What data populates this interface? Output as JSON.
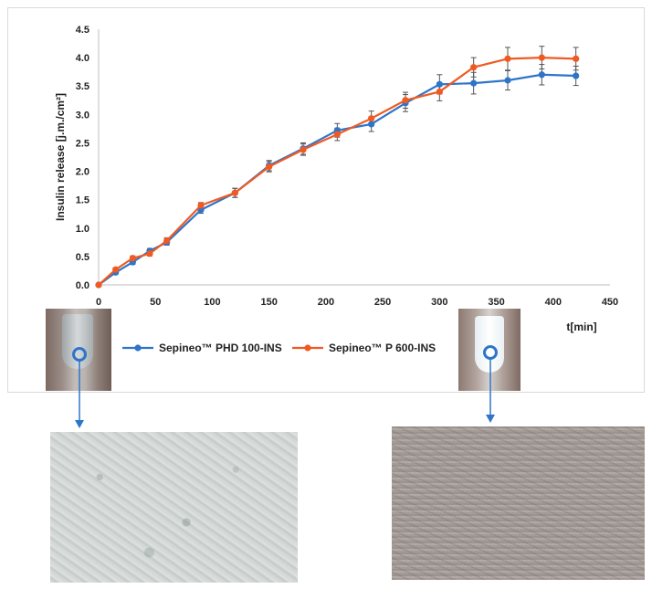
{
  "chart_data": {
    "type": "line",
    "title": "",
    "xlabel": "t[min]",
    "ylabel": "Insulin  release [j.m./cm²]",
    "xlim": [
      0,
      450
    ],
    "ylim": [
      0,
      4.5
    ],
    "xticks": [
      "0",
      "50",
      "100",
      "150",
      "200",
      "250",
      "300",
      "350",
      "400",
      "450"
    ],
    "yticks": [
      "0.0",
      "0.5",
      "1.0",
      "1.5",
      "2.0",
      "2.5",
      "3.0",
      "3.5",
      "4.0",
      "4.5"
    ],
    "grid": false,
    "legend_position": "bottom",
    "x": [
      0,
      15,
      30,
      45,
      60,
      90,
      120,
      150,
      180,
      210,
      240,
      270,
      300,
      330,
      360,
      390,
      420
    ],
    "series": [
      {
        "name": "Sepineo™ PHD 100-INS",
        "color": "#2e75c9",
        "values": [
          0.0,
          0.22,
          0.4,
          0.6,
          0.75,
          1.32,
          1.62,
          2.1,
          2.4,
          2.72,
          2.83,
          3.2,
          3.53,
          3.55,
          3.6,
          3.7,
          3.68
        ],
        "errors": [
          0.0,
          0.03,
          0.04,
          0.04,
          0.05,
          0.06,
          0.08,
          0.09,
          0.1,
          0.12,
          0.13,
          0.15,
          0.17,
          0.19,
          0.17,
          0.18,
          0.17
        ]
      },
      {
        "name": "Sepineo™ P 600-INS",
        "color": "#f05a22",
        "values": [
          0.0,
          0.27,
          0.47,
          0.55,
          0.78,
          1.4,
          1.62,
          2.08,
          2.38,
          2.65,
          2.93,
          3.25,
          3.4,
          3.83,
          3.98,
          4.0,
          3.98
        ],
        "errors": [
          0.0,
          0.03,
          0.04,
          0.04,
          0.05,
          0.05,
          0.08,
          0.09,
          0.1,
          0.11,
          0.13,
          0.14,
          0.16,
          0.17,
          0.2,
          0.2,
          0.2
        ]
      }
    ]
  },
  "colors": {
    "axis": "#bfbfbf",
    "errorbar": "#555555",
    "arrow": "#2e75c9"
  }
}
